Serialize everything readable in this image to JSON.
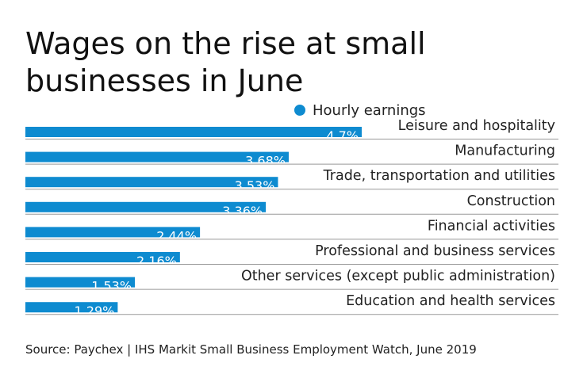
{
  "chart_data": {
    "type": "bar",
    "orientation": "horizontal",
    "title": "Wages on the rise at small businesses in June",
    "source": "Source: Paychex | IHS Markit Small Business Employment Watch, June 2019",
    "categories": [
      "Leisure and hospitality",
      "Manufacturing",
      "Trade, transportation and utilities",
      "Construction",
      "Financial activities",
      "Professional and business services",
      "Other services (except public administration)",
      "Education and health services"
    ],
    "series": [
      {
        "name": "Hourly earnings",
        "color": "#0e8bd0",
        "values": [
          4.7,
          3.68,
          3.53,
          3.36,
          2.44,
          2.16,
          1.53,
          1.29
        ],
        "value_labels": [
          "4.7%",
          "3.68%",
          "3.53%",
          "3.36%",
          "2.44%",
          "2.16%",
          "1.53%",
          "1.29%"
        ]
      }
    ]
  }
}
